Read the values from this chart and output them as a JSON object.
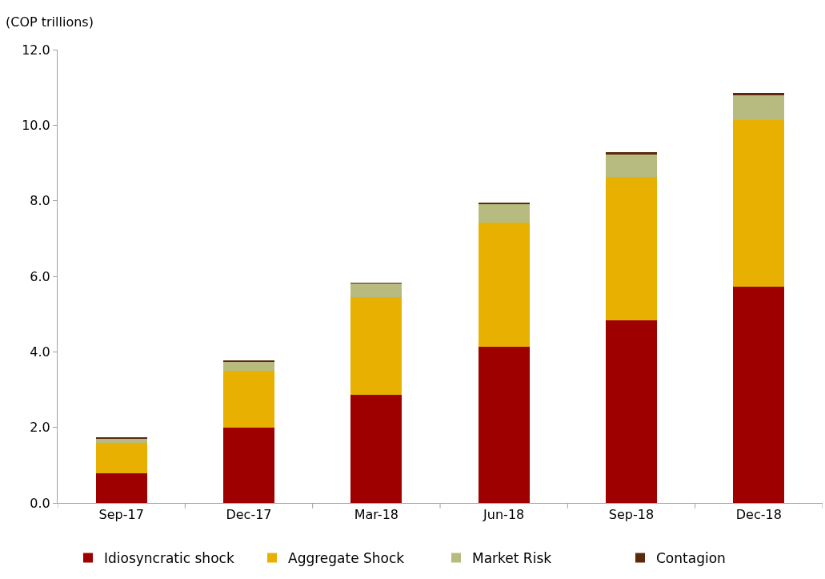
{
  "chart_data": {
    "type": "bar",
    "stacked": true,
    "ylabel": "(COP trillions)",
    "categories": [
      "Sep-17",
      "Dec-17",
      "Mar-18",
      "Jun-18",
      "Sep-18",
      "Dec-18"
    ],
    "series": [
      {
        "name": "Idiosyncratic shock",
        "color": "#9e0000",
        "values": [
          0.78,
          2.0,
          2.86,
          4.13,
          4.84,
          5.73
        ]
      },
      {
        "name": "Aggregate Shock",
        "color": "#e8b000",
        "values": [
          0.82,
          1.5,
          2.59,
          3.3,
          3.79,
          4.4
        ]
      },
      {
        "name": "Market Risk",
        "color": "#b8bb80",
        "values": [
          0.11,
          0.24,
          0.36,
          0.48,
          0.6,
          0.67
        ]
      },
      {
        "name": "Contagion",
        "color": "#5a2a0a",
        "values": [
          0.03,
          0.03,
          0.02,
          0.03,
          0.05,
          0.06
        ]
      }
    ],
    "ylim": [
      0,
      12
    ],
    "yticks": [
      {
        "value": 0,
        "label": "0.0"
      },
      {
        "value": 2,
        "label": "2.0"
      },
      {
        "value": 4,
        "label": "4.0"
      },
      {
        "value": 6,
        "label": "6.0"
      },
      {
        "value": 8,
        "label": "8.0"
      },
      {
        "value": 10,
        "label": "10.0"
      },
      {
        "value": 12,
        "label": "12.0"
      }
    ],
    "legend": "bottom"
  }
}
